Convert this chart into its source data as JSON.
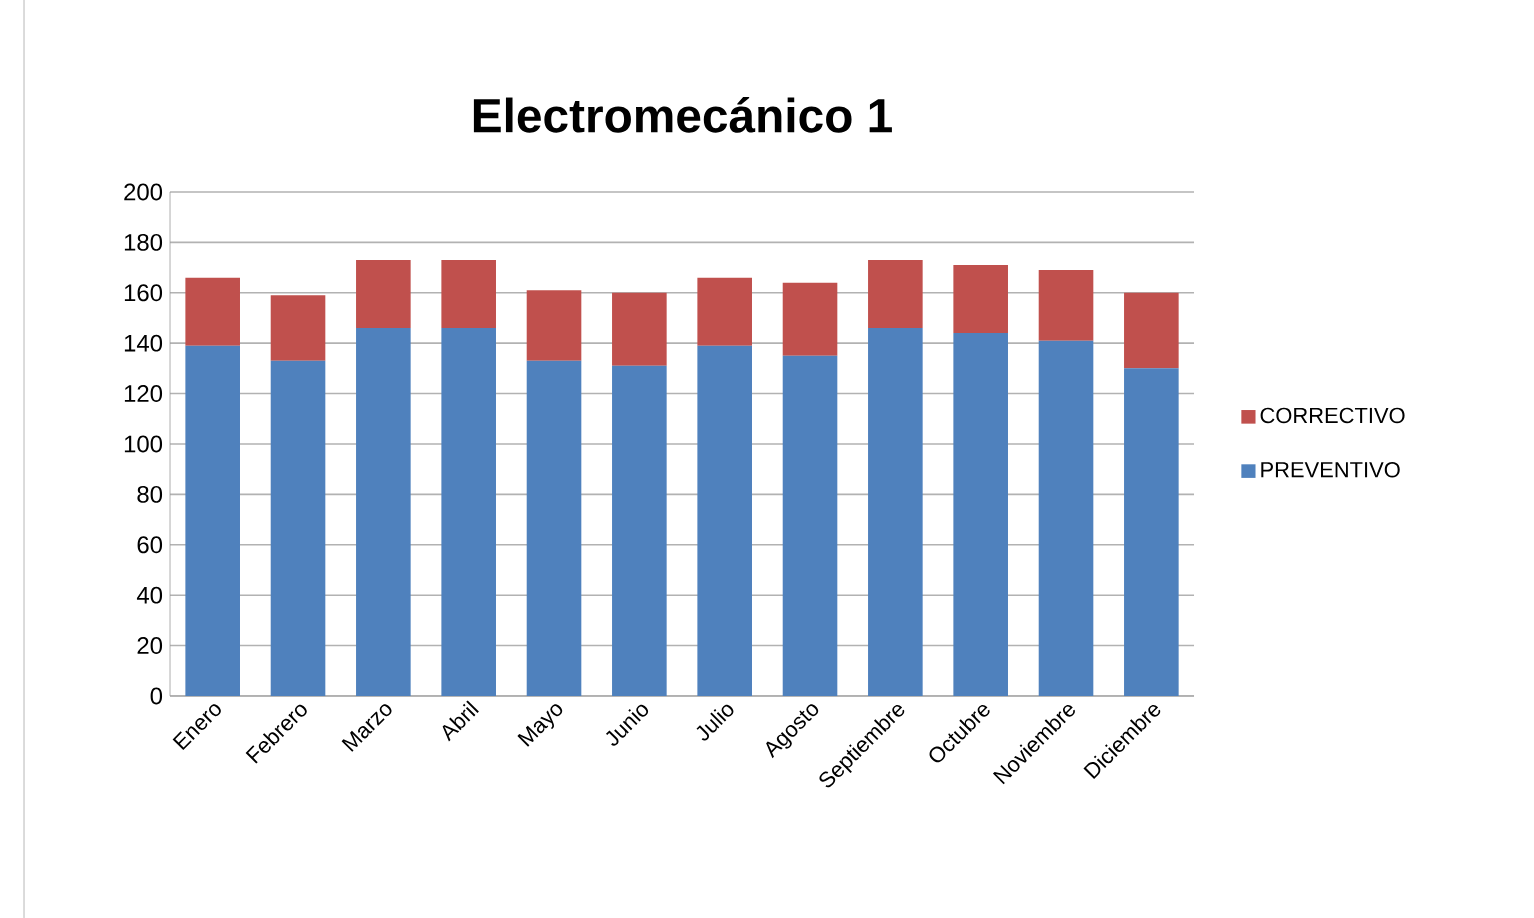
{
  "chart_data": {
    "type": "bar",
    "title": "Electromecánico 1",
    "stacked": true,
    "categories": [
      "Enero",
      "Febrero",
      "Marzo",
      "Abril",
      "Mayo",
      "Junio",
      "Julio",
      "Agosto",
      "Septiembre",
      "Octubre",
      "Noviembre",
      "Diciembre"
    ],
    "series": [
      {
        "name": "PREVENTIVO",
        "color": "#4f81bd",
        "values": [
          139,
          133,
          146,
          146,
          133,
          131,
          139,
          135,
          146,
          144,
          141,
          130
        ]
      },
      {
        "name": "CORRECTIVO",
        "color": "#c0504d",
        "values": [
          27,
          26,
          27,
          27,
          28,
          29,
          27,
          29,
          27,
          27,
          28,
          30
        ]
      }
    ],
    "ylim": [
      0,
      200
    ],
    "yticks": [
      0,
      20,
      40,
      60,
      80,
      100,
      120,
      140,
      160,
      180,
      200
    ],
    "grid": "y",
    "legend": "right"
  }
}
